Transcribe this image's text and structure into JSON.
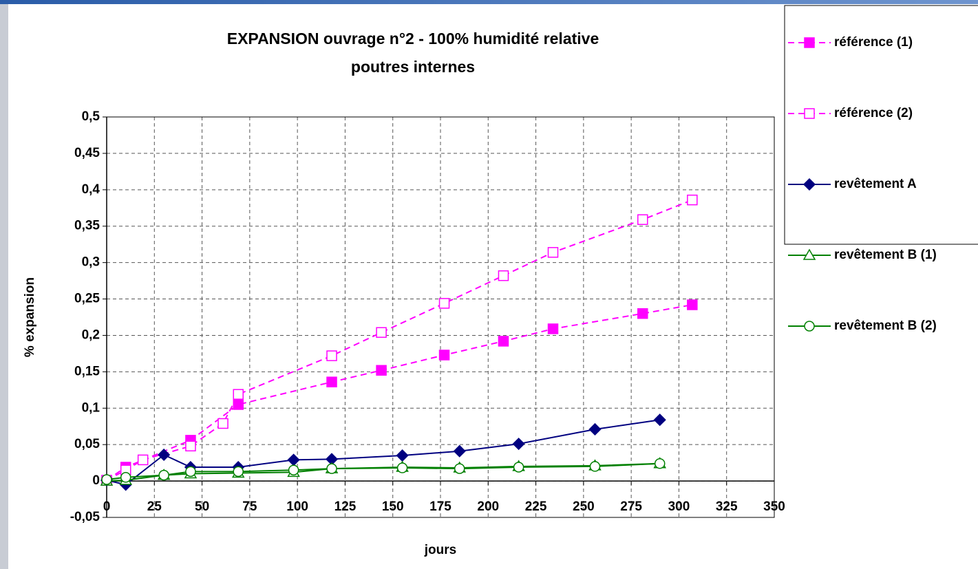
{
  "chart_data": {
    "type": "line",
    "title": "EXPANSION ouvrage n°2 - 100% humidité relative",
    "subtitle": "poutres internes",
    "x_label": "jours",
    "y_label": "% expansion",
    "xlim": [
      0,
      350
    ],
    "xticks": [
      0,
      25,
      50,
      75,
      100,
      125,
      150,
      175,
      200,
      225,
      250,
      275,
      300,
      325,
      350
    ],
    "ylim": [
      -0.05,
      0.5
    ],
    "yticks": [
      {
        "value": -0.05,
        "label": "-0,05"
      },
      0,
      {
        "value": 0.05,
        "label": "0,05"
      },
      {
        "value": 0.1,
        "label": "0,1"
      },
      {
        "value": 0.15,
        "label": "0,15"
      },
      {
        "value": 0.2,
        "label": "0,2"
      },
      {
        "value": 0.25,
        "label": "0,25"
      },
      {
        "value": 0.3,
        "label": "0,3"
      },
      {
        "value": 0.35,
        "label": "0,35"
      },
      {
        "value": 0.4,
        "label": "0,4"
      },
      {
        "value": 0.45,
        "label": "0,45"
      },
      {
        "value": 0.5,
        "label": "0,5"
      }
    ],
    "grid": true,
    "legend": "right",
    "series": [
      {
        "name": "référence (1)",
        "color": "#ff00ff",
        "marker": "square",
        "filled": true,
        "dashed": true,
        "x": [
          0,
          10,
          44,
          69,
          118,
          144,
          177,
          208,
          234,
          281,
          307
        ],
        "values": [
          0.001,
          0.019,
          0.056,
          0.105,
          0.136,
          0.152,
          0.173,
          0.192,
          0.209,
          0.23,
          0.242
        ]
      },
      {
        "name": "référence (2)",
        "color": "#ff00ff",
        "marker": "square",
        "filled": false,
        "dashed": true,
        "x": [
          0,
          10,
          19,
          44,
          61,
          69,
          118,
          144,
          177,
          208,
          234,
          281,
          307
        ],
        "values": [
          0.001,
          0.015,
          0.029,
          0.048,
          0.079,
          0.119,
          0.172,
          0.204,
          0.244,
          0.282,
          0.314,
          0.359,
          0.386
        ]
      },
      {
        "name": "revêtement A",
        "color": "#000080",
        "marker": "diamond",
        "filled": true,
        "dashed": false,
        "x": [
          0,
          10,
          30,
          44,
          69,
          98,
          118,
          155,
          185,
          216,
          256,
          290
        ],
        "values": [
          0.001,
          -0.005,
          0.036,
          0.019,
          0.019,
          0.029,
          0.03,
          0.035,
          0.041,
          0.051,
          0.071,
          0.084
        ]
      },
      {
        "name": "revêtement B (1)",
        "color": "#008000",
        "marker": "triangle",
        "filled": false,
        "dashed": false,
        "x": [
          0,
          10,
          30,
          44,
          69,
          98,
          118,
          155,
          185,
          216,
          256,
          290
        ],
        "values": [
          0.0,
          0.001,
          0.008,
          0.01,
          0.011,
          0.012,
          0.017,
          0.019,
          0.018,
          0.02,
          0.021,
          0.024
        ]
      },
      {
        "name": "revêtement B (2)",
        "color": "#008000",
        "marker": "circle",
        "filled": false,
        "dashed": false,
        "x": [
          0,
          10,
          30,
          44,
          69,
          98,
          118,
          155,
          185,
          216,
          256,
          290
        ],
        "values": [
          0.002,
          0.005,
          0.008,
          0.013,
          0.013,
          0.015,
          0.017,
          0.018,
          0.017,
          0.019,
          0.02,
          0.024
        ]
      }
    ]
  }
}
